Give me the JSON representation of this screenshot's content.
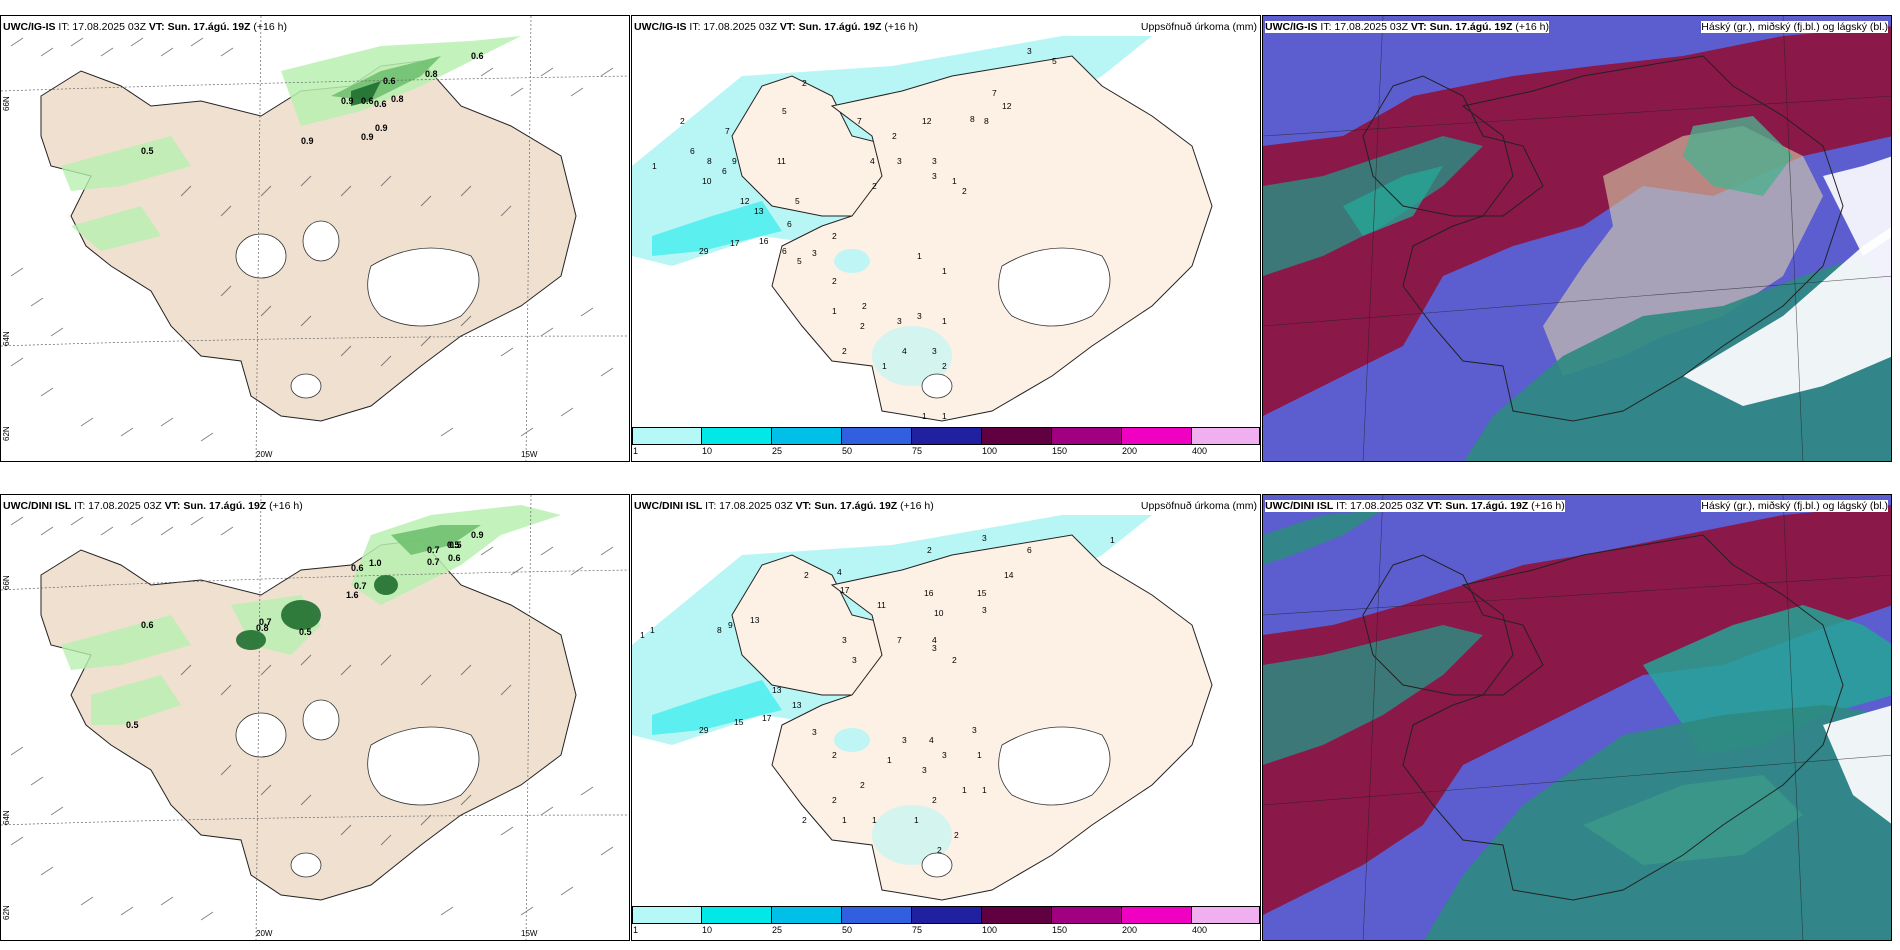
{
  "rows": [
    {
      "model": "UWC/IG-IS",
      "it_label": "IT: 17.08.2025 03Z",
      "vt_prefix": "VT:",
      "vt_value": "Sun. 17.ágú. 19Z",
      "lead": "(+16 h)",
      "precip_title": "Uppsöfnuð úrkoma (mm)",
      "cloud_title": "Háský (gr.), miðský (fj.bl.) og lágský (bl.)",
      "lon_labels": [
        "20W",
        "15W"
      ],
      "lat_labels": [
        "66N",
        "64N",
        "62N"
      ],
      "wind_values": [
        "0.6",
        "0.8",
        "0.6",
        "0.9",
        "0.6",
        "0.6",
        "0.8",
        "0.9",
        "0.9",
        "0.9",
        "0.5"
      ],
      "precip_values": [
        "3",
        "5",
        "2",
        "7",
        "12",
        "12",
        "8",
        "8",
        "7",
        "2",
        "5",
        "7",
        "6",
        "8",
        "9",
        "11",
        "10",
        "6",
        "5",
        "12",
        "13",
        "6",
        "2",
        "29",
        "17",
        "16",
        "6",
        "5",
        "3",
        "2",
        "1",
        "1",
        "3",
        "3",
        "4",
        "3",
        "2",
        "2",
        "2",
        "1",
        "1",
        "2",
        "1",
        "3",
        "2",
        "3",
        "1",
        "3",
        "4",
        "2",
        "1",
        "2",
        "1",
        "1"
      ]
    },
    {
      "model": "UWC/DINI ISL",
      "it_label": "IT: 17.08.2025 03Z",
      "vt_prefix": "VT:",
      "vt_value": "Sun. 17.ágú. 19Z",
      "lead": "(+16 h)",
      "precip_title": "Uppsöfnuð úrkoma (mm)",
      "cloud_title": "Háský (gr.), miðský (fj.bl.) og lágský (bl.)",
      "lon_labels": [
        "20W",
        "15W"
      ],
      "lat_labels": [
        "66N",
        "64N",
        "62N"
      ],
      "wind_values": [
        "0.9",
        "0.5",
        "0.7",
        "0.6",
        "0.7",
        "0.6",
        "1.0",
        "1.6",
        "0.7",
        "0.5",
        "0.8",
        "0.5",
        "0.6",
        "0.5",
        "0.7"
      ],
      "precip_values": [
        "3",
        "2",
        "6",
        "1",
        "4",
        "2",
        "17",
        "16",
        "14",
        "15",
        "11",
        "10",
        "3",
        "1",
        "1",
        "8",
        "9",
        "13",
        "13",
        "29",
        "15",
        "17",
        "13",
        "3",
        "2",
        "3",
        "7",
        "3",
        "4",
        "2",
        "3",
        "3",
        "2",
        "2",
        "2",
        "1",
        "1",
        "1",
        "4",
        "3",
        "3",
        "1",
        "2",
        "1",
        "1",
        "2",
        "2",
        "3",
        "1"
      ]
    }
  ],
  "colorbar": {
    "labels": [
      "1",
      "10",
      "25",
      "50",
      "75",
      "100",
      "150",
      "200",
      "400"
    ],
    "colors": [
      "#b4f8f8",
      "#00e8e8",
      "#00c0e8",
      "#3060e0",
      "#2020a0",
      "#600040",
      "#a00080",
      "#f000c0",
      "#f0b0f0"
    ]
  },
  "colors": {
    "land": "#efe0d0",
    "land_precip": "#fdf0e4",
    "precip_light": "#b8f6f6",
    "wind_green_light": "#b8f0b0",
    "wind_green_mid": "#70c070",
    "wind_green_dark": "#1f6e2f",
    "high_cloud": "#8a1848",
    "mid_cloud": "#5c5ed0",
    "low_cloud": "#2e8a80"
  }
}
